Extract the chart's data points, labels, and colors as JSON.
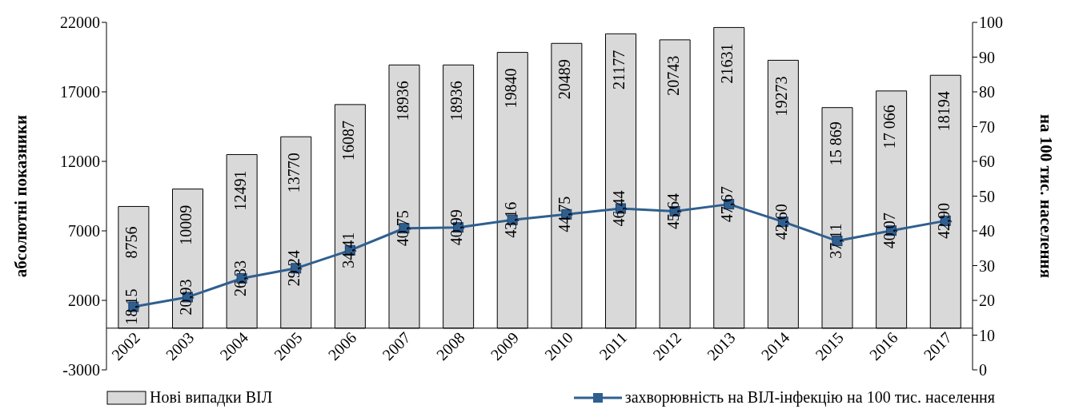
{
  "chart_data": {
    "type": "bar",
    "ylabel": "абсолютні показники",
    "y2label": "на 100 тис. населення",
    "categories": [
      "2002",
      "2003",
      "2004",
      "2005",
      "2006",
      "2007",
      "2008",
      "2009",
      "2010",
      "2011",
      "2012",
      "2013",
      "2014",
      "2015",
      "2016",
      "2017"
    ],
    "series": [
      {
        "name": "Нові випадки ВІЛ",
        "color": "#d9d9d9",
        "values": [
          8756,
          10009,
          12491,
          13770,
          16087,
          18936,
          18936,
          19840,
          20489,
          21177,
          20743,
          21631,
          19273,
          15869,
          17066,
          18194
        ],
        "value_labels": [
          "8756",
          "10009",
          "12491",
          "13770",
          "16087",
          "18936",
          "18936",
          "19840",
          "20489",
          "21177",
          "20743",
          "21631",
          "19273",
          "15 869",
          "17 066",
          "18194"
        ]
      },
      {
        "name": "захворювність на ВІЛ-інфекцію  на 100 тис. населення",
        "type": "line",
        "axis": "y2",
        "color": "#2f5f8f",
        "values": [
          18.15,
          20.93,
          26.33,
          29.24,
          34.41,
          40.75,
          40.99,
          43.16,
          44.75,
          46.44,
          45.64,
          47.67,
          42.6,
          37.11,
          40.07,
          42.9
        ],
        "value_labels": [
          "18,15",
          "20,93",
          "26,33",
          "29,24",
          "34,41",
          "40,75",
          "40,99",
          "43,16",
          "44,75",
          "46,44",
          "45,64",
          "47,67",
          "42,60",
          "37,11",
          "40,07",
          "42,90"
        ]
      }
    ],
    "ylim": [
      -3000,
      22000
    ],
    "yticks": [
      -3000,
      2000,
      7000,
      12000,
      17000,
      22000
    ],
    "y2lim": [
      0,
      100
    ],
    "y2ticks": [
      0,
      10,
      20,
      30,
      40,
      50,
      60,
      70,
      80,
      90,
      100
    ],
    "legend": "bottom",
    "marker": "square",
    "line_style": "solid"
  }
}
